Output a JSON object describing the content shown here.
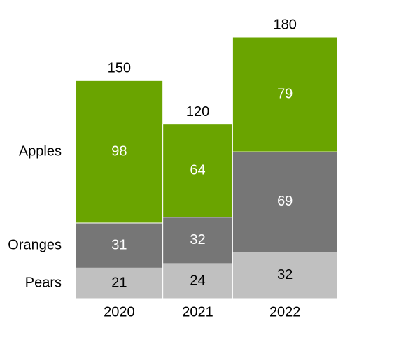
{
  "chart_data": {
    "type": "bar",
    "subtype": "variable-width stacked (mekko)",
    "categories": [
      "2020",
      "2021",
      "2022"
    ],
    "totals": [
      150,
      120,
      180
    ],
    "series": [
      {
        "name": "Pears",
        "values": [
          21,
          24,
          32
        ],
        "color": "#c0c0c0",
        "label_color": "#000000"
      },
      {
        "name": "Oranges",
        "values": [
          31,
          32,
          69
        ],
        "color": "#767676",
        "label_color": "#ffffff"
      },
      {
        "name": "Apples",
        "values": [
          98,
          64,
          79
        ],
        "color": "#6aa400",
        "label_color": "#ffffff"
      }
    ],
    "legend_placement": "left",
    "title": "",
    "xlabel": "",
    "ylabel": "",
    "ylim": [
      0,
      180
    ],
    "grid": false,
    "colors": {
      "baseline": "#000000",
      "segment_border": "#ffffff",
      "text": "#000000"
    }
  }
}
